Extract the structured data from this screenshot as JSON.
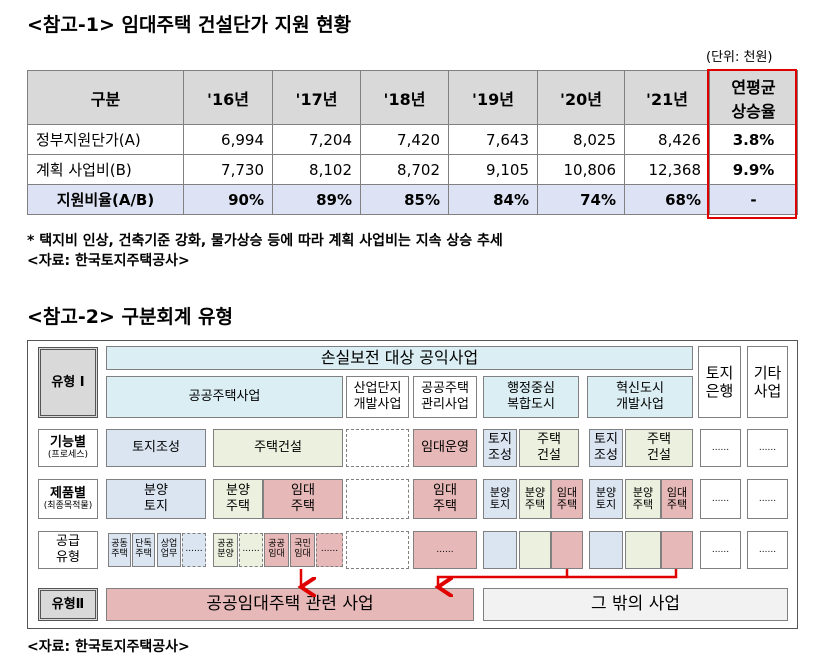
{
  "section1": {
    "title": "<참고-1> 임대주택 건설단가 지원 현황",
    "unit": "(단위: 천원)",
    "table": {
      "header": [
        "구분",
        "'16년",
        "'17년",
        "'18년",
        "'19년",
        "'20년",
        "'21년",
        "연평균\n상승율"
      ],
      "rows": [
        [
          "정부지원단가(A)",
          "6,994",
          "7,204",
          "7,420",
          "7,643",
          "8,025",
          "8,426",
          "3.8%"
        ],
        [
          "계획 사업비(B)",
          "7,730",
          "8,102",
          "8,702",
          "9,105",
          "10,806",
          "12,368",
          "9.9%"
        ],
        [
          "지원비율(A/B)",
          "90%",
          "89%",
          "85%",
          "84%",
          "74%",
          "68%",
          "-"
        ]
      ]
    },
    "note": "* 택지비 인상, 건축기준 강화, 물가상승 등에 따라 계획 사업비는 지속 상승 추세",
    "source": "<자료: 한국토지주택공사>"
  },
  "section2": {
    "title": "<참고-2> 구분회계 유형",
    "diagram": {
      "row_labels": {
        "type1": "유형 Ⅰ",
        "function": "기능별",
        "function_sub": "(프로세스)",
        "product": "제품별",
        "product_sub": "(최종목적물)",
        "supply": "공급\n유형",
        "type2": "유형Ⅱ"
      },
      "headers": {
        "main": "손실보전 대상 공익사업",
        "land_bank": "토지\n은행",
        "other": "기타\n사업"
      },
      "businesses": [
        "공공주택사업",
        "산업단지\n개발사업",
        "공공주택\n관리사업",
        "행정중심\n복합도시",
        "혁신도시\n개발사업"
      ],
      "function_row": [
        "토지조성",
        "주택건설",
        "임대운영",
        "토지\n조성",
        "주택\n건설",
        "토지\n조성",
        "주택\n건설",
        "......",
        "......"
      ],
      "product_row": [
        "분양\n토지",
        "분양\n주택",
        "임대\n주택",
        "임대\n주택",
        "분양\n토지",
        "분양\n주택",
        "임대\n주택",
        "분양\n토지",
        "분양\n주택",
        "임대\n주택",
        "......",
        "......"
      ],
      "supply_row": [
        "공동\n주택",
        "단독\n주택",
        "상업\n업무",
        "......",
        "공공\n분양",
        "......",
        "공공\n임대",
        "국민\n임대",
        "......",
        "......",
        "......",
        "......"
      ],
      "type2_row": [
        "공공임대주택 관련 사업",
        "그 밖의 사업"
      ]
    },
    "source": "<자료: 한국토지주택공사>"
  }
}
